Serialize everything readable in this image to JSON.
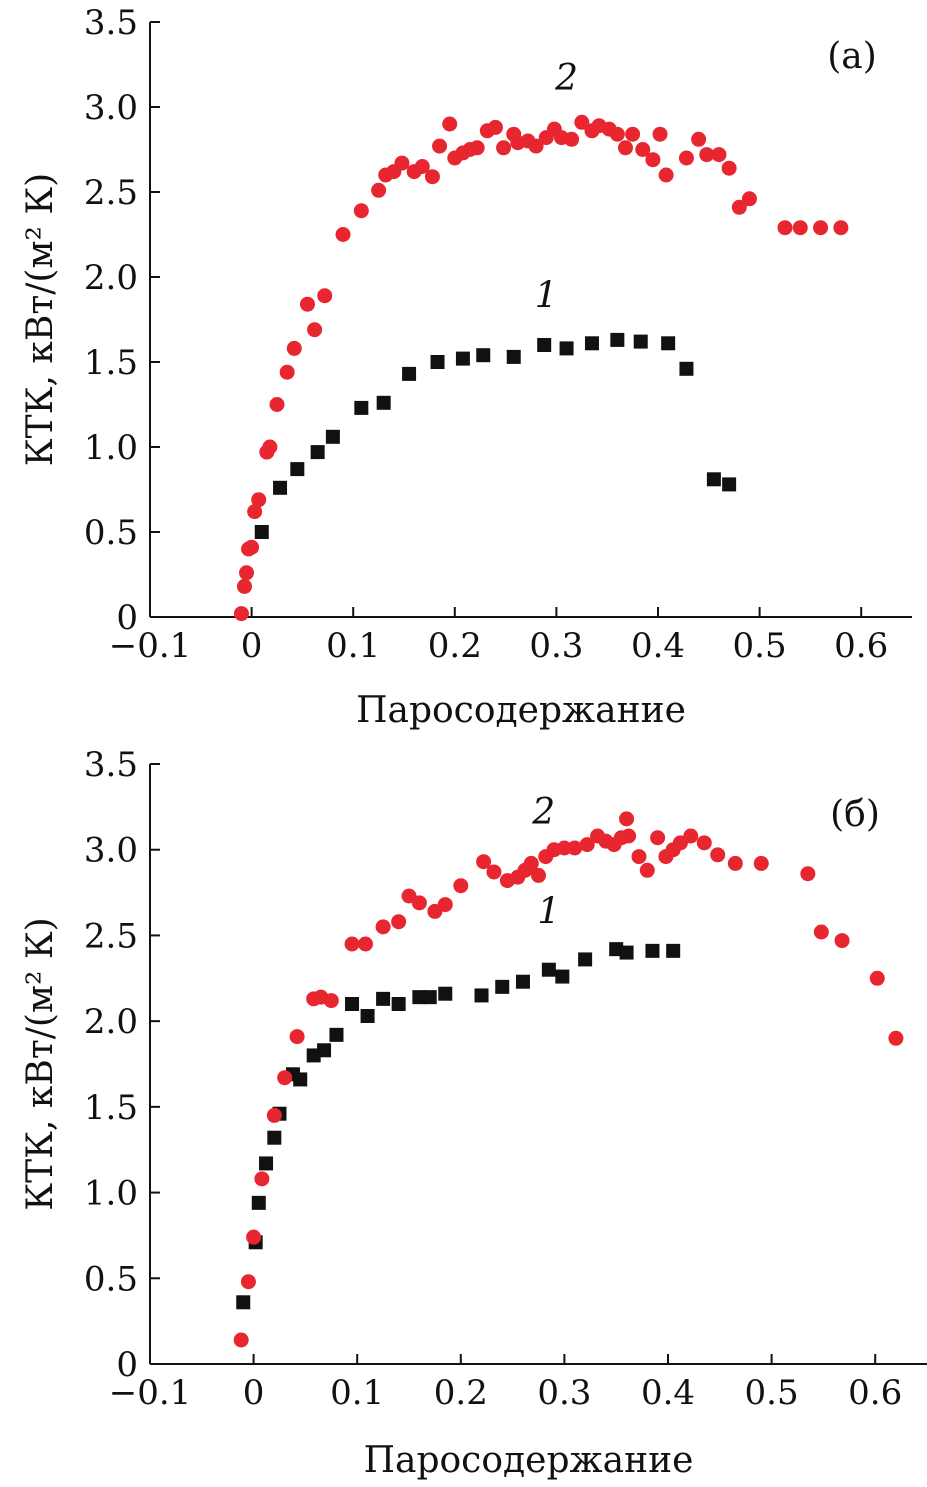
{
  "chart_data": [
    {
      "type": "scatter",
      "panel_label": "(а)",
      "xlabel": "Паросодержание",
      "ylabel": "КТК, кВт/(м² К)",
      "xlim": [
        -0.1,
        0.65
      ],
      "ylim": [
        0,
        3.5
      ],
      "x_ticks": [
        -0.1,
        0,
        0.1,
        0.2,
        0.3,
        0.4,
        0.5,
        0.6
      ],
      "x_tick_labels": [
        "−0.1",
        "0",
        "0.1",
        "0.2",
        "0.3",
        "0.4",
        "0.5",
        "0.6"
      ],
      "y_ticks": [
        0,
        0.5,
        1.0,
        1.5,
        2.0,
        2.5,
        3.0,
        3.5
      ],
      "y_tick_labels": [
        "0",
        "0.5",
        "1.0",
        "1.5",
        "2.0",
        "2.5",
        "3.0",
        "3.5"
      ],
      "series": [
        {
          "name": "1",
          "marker": "square",
          "color": "#111111",
          "label_pos": {
            "x": 0.29,
            "y": 1.82
          },
          "x": [
            0.01,
            0.028,
            0.045,
            0.065,
            0.08,
            0.108,
            0.13,
            0.155,
            0.183,
            0.208,
            0.228,
            0.258,
            0.288,
            0.31,
            0.335,
            0.36,
            0.383,
            0.41,
            0.428,
            0.455,
            0.47
          ],
          "y": [
            0.5,
            0.76,
            0.87,
            0.97,
            1.06,
            1.23,
            1.26,
            1.43,
            1.5,
            1.52,
            1.54,
            1.53,
            1.6,
            1.58,
            1.61,
            1.63,
            1.62,
            1.61,
            1.46,
            0.81,
            0.78
          ]
        },
        {
          "name": "2",
          "marker": "circle",
          "color": "#e8262f",
          "label_pos": {
            "x": 0.31,
            "y": 3.1
          },
          "x": [
            -0.01,
            -0.007,
            -0.005,
            -0.003,
            0.0,
            0.003,
            0.007,
            0.015,
            0.018,
            0.025,
            0.035,
            0.042,
            0.055,
            0.062,
            0.072,
            0.09,
            0.108,
            0.125,
            0.132,
            0.14,
            0.148,
            0.16,
            0.168,
            0.178,
            0.185,
            0.195,
            0.2,
            0.208,
            0.215,
            0.222,
            0.232,
            0.24,
            0.248,
            0.258,
            0.262,
            0.272,
            0.28,
            0.29,
            0.298,
            0.305,
            0.315,
            0.325,
            0.335,
            0.342,
            0.352,
            0.36,
            0.368,
            0.375,
            0.385,
            0.395,
            0.402,
            0.408,
            0.428,
            0.44,
            0.448,
            0.46,
            0.47,
            0.48,
            0.49,
            0.525,
            0.54,
            0.56,
            0.58
          ],
          "y": [
            0.02,
            0.18,
            0.26,
            0.4,
            0.41,
            0.62,
            0.69,
            0.97,
            1.0,
            1.25,
            1.44,
            1.58,
            1.84,
            1.69,
            1.89,
            2.25,
            2.39,
            2.51,
            2.6,
            2.62,
            2.67,
            2.62,
            2.65,
            2.59,
            2.77,
            2.9,
            2.7,
            2.73,
            2.75,
            2.76,
            2.86,
            2.88,
            2.76,
            2.84,
            2.79,
            2.8,
            2.77,
            2.82,
            2.87,
            2.82,
            2.81,
            2.91,
            2.86,
            2.89,
            2.87,
            2.84,
            2.76,
            2.84,
            2.75,
            2.69,
            2.84,
            2.6,
            2.7,
            2.81,
            2.72,
            2.72,
            2.64,
            2.41,
            2.46,
            2.29,
            2.29,
            2.29,
            2.29
          ],
          "note": ""
        }
      ]
    },
    {
      "type": "scatter",
      "panel_label": "(б)",
      "xlabel": "Паросодержание",
      "ylabel": "КТК, кВт/(м² К)",
      "xlim": [
        -0.1,
        0.65
      ],
      "ylim": [
        0,
        3.5
      ],
      "x_ticks": [
        -0.1,
        0,
        0.1,
        0.2,
        0.3,
        0.4,
        0.5,
        0.6
      ],
      "x_tick_labels": [
        "−0.1",
        "0",
        "0.1",
        "0.2",
        "0.3",
        "0.4",
        "0.5",
        "0.6"
      ],
      "y_ticks": [
        0,
        0.5,
        1.0,
        1.5,
        2.0,
        2.5,
        3.0,
        3.5
      ],
      "y_tick_labels": [
        "0",
        "0.5",
        "1.0",
        "1.5",
        "2.0",
        "2.5",
        "3.0",
        "3.5"
      ],
      "series": [
        {
          "name": "1",
          "marker": "square",
          "color": "#111111",
          "label_pos": {
            "x": 0.285,
            "y": 2.57
          },
          "x": [
            -0.01,
            0.002,
            0.005,
            0.012,
            0.02,
            0.025,
            0.038,
            0.045,
            0.058,
            0.068,
            0.08,
            0.095,
            0.11,
            0.125,
            0.14,
            0.16,
            0.17,
            0.185,
            0.22,
            0.24,
            0.26,
            0.285,
            0.298,
            0.32,
            0.35,
            0.36,
            0.385,
            0.405
          ],
          "y": [
            0.36,
            0.71,
            0.94,
            1.17,
            1.32,
            1.46,
            1.69,
            1.66,
            1.8,
            1.83,
            1.92,
            2.1,
            2.03,
            2.13,
            2.1,
            2.14,
            2.14,
            2.16,
            2.15,
            2.2,
            2.23,
            2.3,
            2.26,
            2.36,
            2.42,
            2.4,
            2.41,
            2.41
          ]
        },
        {
          "name": "2",
          "marker": "circle",
          "color": "#e8262f",
          "label_pos": {
            "x": 0.28,
            "y": 3.15
          },
          "x": [
            -0.012,
            -0.005,
            0.0,
            0.008,
            0.02,
            0.03,
            0.042,
            0.058,
            0.065,
            0.075,
            0.095,
            0.108,
            0.125,
            0.14,
            0.15,
            0.16,
            0.175,
            0.185,
            0.2,
            0.222,
            0.232,
            0.245,
            0.255,
            0.262,
            0.268,
            0.275,
            0.282,
            0.29,
            0.3,
            0.31,
            0.322,
            0.332,
            0.34,
            0.348,
            0.355,
            0.36,
            0.362,
            0.372,
            0.38,
            0.39,
            0.398,
            0.405,
            0.412,
            0.422,
            0.435,
            0.448,
            0.465,
            0.49,
            0.535,
            0.548,
            0.568,
            0.602,
            0.62
          ],
          "y": [
            0.14,
            0.48,
            0.74,
            1.08,
            1.45,
            1.67,
            1.91,
            2.13,
            2.14,
            2.12,
            2.45,
            2.45,
            2.55,
            2.58,
            2.73,
            2.69,
            2.64,
            2.68,
            2.79,
            2.93,
            2.87,
            2.82,
            2.84,
            2.88,
            2.92,
            2.85,
            2.96,
            3.0,
            3.01,
            3.01,
            3.03,
            3.08,
            3.05,
            3.03,
            3.07,
            3.18,
            3.08,
            2.96,
            2.88,
            3.07,
            2.96,
            3.0,
            3.04,
            3.08,
            3.04,
            2.97,
            2.92,
            2.92,
            2.86,
            2.52,
            2.47,
            2.25,
            1.9
          ],
          "note": ""
        }
      ]
    }
  ]
}
